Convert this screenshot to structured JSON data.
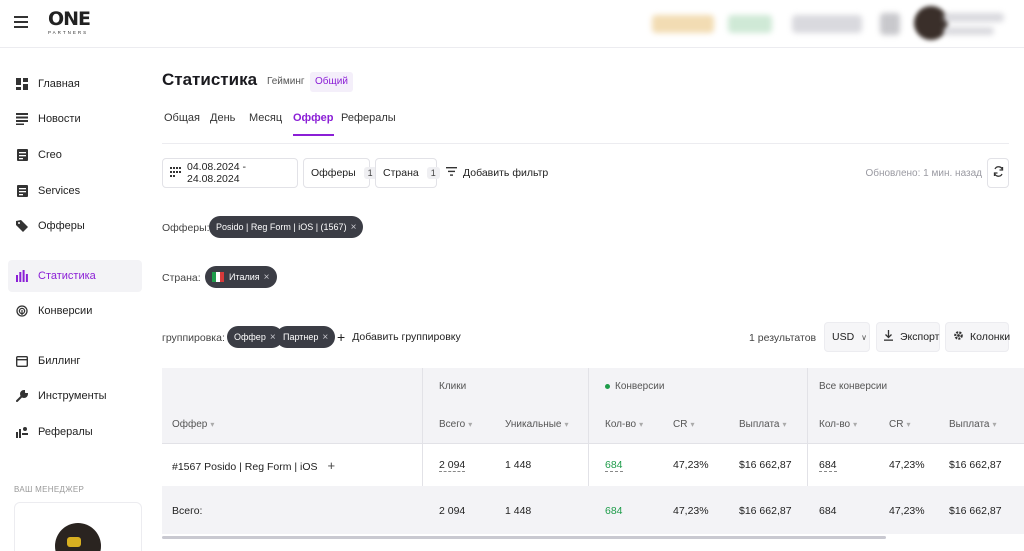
{
  "brand": {
    "name": "ONE",
    "tagline": "PARTNERS"
  },
  "sidebar": {
    "items": [
      {
        "label": "Главная",
        "icon": "dashboard-icon"
      },
      {
        "label": "Новости",
        "icon": "news-icon"
      },
      {
        "label": "Creo",
        "icon": "document-icon"
      },
      {
        "label": "Services",
        "icon": "document-icon"
      },
      {
        "label": "Офферы",
        "icon": "tag-icon"
      },
      {
        "label": "Статистика",
        "icon": "bar-chart-icon",
        "active": true
      },
      {
        "label": "Конверсии",
        "icon": "fingerprint-icon"
      },
      {
        "label": "Биллинг",
        "icon": "wallet-icon"
      },
      {
        "label": "Инструменты",
        "icon": "wrench-icon"
      },
      {
        "label": "Рефералы",
        "icon": "referral-icon"
      }
    ],
    "manager_label": "ВАШ МЕНЕДЖЕР"
  },
  "page": {
    "title": "Статистика",
    "modes": [
      "Гейминг",
      "Общий"
    ],
    "active_mode": "Общий",
    "tabs": [
      "Общая",
      "День",
      "Месяц",
      "Оффер",
      "Рефералы"
    ],
    "active_tab": "Оффер"
  },
  "filters": {
    "date_range": "04.08.2024 - 24.08.2024",
    "offers_label": "Офферы",
    "offers_count": "1",
    "country_label": "Страна",
    "country_count": "1",
    "add_filter": "Добавить фильтр",
    "updated": "Обновлено: 1 мин. назад"
  },
  "chips": {
    "offers_label": "Офферы:",
    "offer_chip": "Posido | Reg Form | iOS | (1567)",
    "country_label": "Страна:",
    "country_chip": "Италия",
    "grouping_label": "группировка:",
    "group_chips": [
      "Оффер",
      "Партнер"
    ],
    "add_grouping": "Добавить группировку"
  },
  "toolbar": {
    "results": "1 результатов",
    "currency": "USD",
    "export": "Экспорт",
    "columns": "Колонки"
  },
  "table": {
    "group_headers": {
      "clicks": "Клики",
      "conversions": "Конверсии",
      "all_conversions": "Все конверсии"
    },
    "columns": {
      "offer": "Оффер",
      "total": "Всего",
      "unique": "Уникальные",
      "count": "Кол-во",
      "cr": "CR",
      "payout": "Выплата",
      "all_count": "Кол-во",
      "all_cr": "CR",
      "all_payout": "Выплата"
    },
    "row": {
      "offer": "#1567 Posido | Reg Form | iOS",
      "clicks_total": "2 094",
      "clicks_unique": "1 448",
      "conv_count": "684",
      "conv_cr": "47,23%",
      "conv_payout": "$16 662,87",
      "all_count": "684",
      "all_cr": "47,23%",
      "all_payout": "$16 662,87"
    },
    "total": {
      "label": "Всего:",
      "clicks_total": "2 094",
      "clicks_unique": "1 448",
      "conv_count": "684",
      "conv_cr": "47,23%",
      "conv_payout": "$16 662,87",
      "all_count": "684",
      "all_cr": "47,23%",
      "all_payout": "$16 662,87"
    }
  },
  "colors": {
    "accent": "#8b1fd6",
    "positive": "#1e9c4a",
    "chip_bg": "#3b3d45"
  }
}
